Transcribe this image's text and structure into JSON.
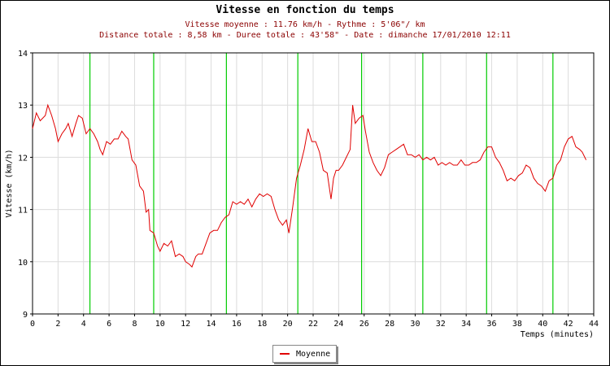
{
  "chart_data": {
    "type": "line",
    "title": "Vitesse en fonction du temps",
    "subtitle_lines": [
      "Vitesse moyenne : 11.76 km/h - Rythme : 5'06\"/ km",
      "Distance totale : 8,58 km - Duree totale : 43'58\" - Date : dimanche 17/01/2010 12:11"
    ],
    "xlabel": "Temps (minutes)",
    "ylabel": "Vitesse (km/h)",
    "xlim": [
      0,
      44
    ],
    "ylim": [
      9,
      14
    ],
    "x_ticks": [
      "0",
      "2",
      "4",
      "6",
      "8",
      "10",
      "12",
      "14",
      "16",
      "18",
      "20",
      "22",
      "24",
      "26",
      "28",
      "30",
      "32",
      "34",
      "36",
      "38",
      "40",
      "42",
      "44"
    ],
    "y_ticks": [
      "9",
      "10",
      "11",
      "12",
      "13",
      "14"
    ],
    "grid": true,
    "legend_position": "bottom-center",
    "km_markers": [
      4.5,
      9.5,
      15.2,
      20.8,
      25.8,
      30.6,
      35.6,
      40.8
    ],
    "colors": {
      "series": "#e00000",
      "markers": "#00cc00",
      "grid": "#dcdcdc"
    },
    "series": [
      {
        "name": "Moyenne",
        "points": [
          [
            0.0,
            12.55
          ],
          [
            0.3,
            12.85
          ],
          [
            0.6,
            12.7
          ],
          [
            1.0,
            12.8
          ],
          [
            1.2,
            13.0
          ],
          [
            1.5,
            12.8
          ],
          [
            1.8,
            12.55
          ],
          [
            2.0,
            12.3
          ],
          [
            2.3,
            12.45
          ],
          [
            2.6,
            12.55
          ],
          [
            2.8,
            12.65
          ],
          [
            3.1,
            12.4
          ],
          [
            3.4,
            12.65
          ],
          [
            3.6,
            12.8
          ],
          [
            3.9,
            12.75
          ],
          [
            4.2,
            12.45
          ],
          [
            4.5,
            12.55
          ],
          [
            4.8,
            12.45
          ],
          [
            5.1,
            12.3
          ],
          [
            5.3,
            12.15
          ],
          [
            5.5,
            12.05
          ],
          [
            5.8,
            12.3
          ],
          [
            6.1,
            12.25
          ],
          [
            6.4,
            12.35
          ],
          [
            6.7,
            12.35
          ],
          [
            7.0,
            12.5
          ],
          [
            7.3,
            12.4
          ],
          [
            7.5,
            12.35
          ],
          [
            7.8,
            11.95
          ],
          [
            8.1,
            11.85
          ],
          [
            8.4,
            11.45
          ],
          [
            8.7,
            11.35
          ],
          [
            8.9,
            10.95
          ],
          [
            9.1,
            11.0
          ],
          [
            9.2,
            10.6
          ],
          [
            9.5,
            10.55
          ],
          [
            9.8,
            10.3
          ],
          [
            10.0,
            10.2
          ],
          [
            10.3,
            10.35
          ],
          [
            10.6,
            10.3
          ],
          [
            10.9,
            10.4
          ],
          [
            11.2,
            10.1
          ],
          [
            11.5,
            10.15
          ],
          [
            11.8,
            10.1
          ],
          [
            12.0,
            10.0
          ],
          [
            12.3,
            9.95
          ],
          [
            12.5,
            9.9
          ],
          [
            12.8,
            10.1
          ],
          [
            13.0,
            10.15
          ],
          [
            13.3,
            10.15
          ],
          [
            13.6,
            10.35
          ],
          [
            13.9,
            10.55
          ],
          [
            14.2,
            10.6
          ],
          [
            14.5,
            10.6
          ],
          [
            14.8,
            10.75
          ],
          [
            15.1,
            10.85
          ],
          [
            15.4,
            10.9
          ],
          [
            15.7,
            11.15
          ],
          [
            16.0,
            11.1
          ],
          [
            16.3,
            11.15
          ],
          [
            16.6,
            11.1
          ],
          [
            16.9,
            11.2
          ],
          [
            17.2,
            11.05
          ],
          [
            17.5,
            11.2
          ],
          [
            17.8,
            11.3
          ],
          [
            18.1,
            11.25
          ],
          [
            18.4,
            11.3
          ],
          [
            18.7,
            11.25
          ],
          [
            19.0,
            11.0
          ],
          [
            19.3,
            10.8
          ],
          [
            19.6,
            10.7
          ],
          [
            19.9,
            10.8
          ],
          [
            20.1,
            10.55
          ],
          [
            20.4,
            11.05
          ],
          [
            20.7,
            11.6
          ],
          [
            21.0,
            11.85
          ],
          [
            21.3,
            12.15
          ],
          [
            21.6,
            12.55
          ],
          [
            21.9,
            12.3
          ],
          [
            22.2,
            12.3
          ],
          [
            22.5,
            12.1
          ],
          [
            22.8,
            11.75
          ],
          [
            23.1,
            11.7
          ],
          [
            23.4,
            11.2
          ],
          [
            23.6,
            11.6
          ],
          [
            23.8,
            11.75
          ],
          [
            24.0,
            11.75
          ],
          [
            24.3,
            11.85
          ],
          [
            24.6,
            12.0
          ],
          [
            24.9,
            12.15
          ],
          [
            25.1,
            13.0
          ],
          [
            25.3,
            12.65
          ],
          [
            25.6,
            12.75
          ],
          [
            25.9,
            12.8
          ],
          [
            26.1,
            12.5
          ],
          [
            26.4,
            12.1
          ],
          [
            26.7,
            11.9
          ],
          [
            27.0,
            11.75
          ],
          [
            27.3,
            11.65
          ],
          [
            27.6,
            11.8
          ],
          [
            27.9,
            12.05
          ],
          [
            28.2,
            12.1
          ],
          [
            28.5,
            12.15
          ],
          [
            28.8,
            12.2
          ],
          [
            29.1,
            12.25
          ],
          [
            29.4,
            12.05
          ],
          [
            29.7,
            12.05
          ],
          [
            30.0,
            12.0
          ],
          [
            30.3,
            12.05
          ],
          [
            30.6,
            11.95
          ],
          [
            30.9,
            12.0
          ],
          [
            31.2,
            11.95
          ],
          [
            31.5,
            12.0
          ],
          [
            31.8,
            11.85
          ],
          [
            32.1,
            11.9
          ],
          [
            32.4,
            11.85
          ],
          [
            32.7,
            11.9
          ],
          [
            33.0,
            11.85
          ],
          [
            33.3,
            11.85
          ],
          [
            33.6,
            11.95
          ],
          [
            33.9,
            11.85
          ],
          [
            34.2,
            11.85
          ],
          [
            34.5,
            11.9
          ],
          [
            34.8,
            11.9
          ],
          [
            35.1,
            11.95
          ],
          [
            35.4,
            12.1
          ],
          [
            35.7,
            12.2
          ],
          [
            36.0,
            12.2
          ],
          [
            36.3,
            12.0
          ],
          [
            36.6,
            11.9
          ],
          [
            36.9,
            11.75
          ],
          [
            37.2,
            11.55
          ],
          [
            37.5,
            11.6
          ],
          [
            37.8,
            11.55
          ],
          [
            38.1,
            11.65
          ],
          [
            38.4,
            11.7
          ],
          [
            38.7,
            11.85
          ],
          [
            39.0,
            11.8
          ],
          [
            39.3,
            11.6
          ],
          [
            39.6,
            11.5
          ],
          [
            39.9,
            11.45
          ],
          [
            40.2,
            11.35
          ],
          [
            40.5,
            11.55
          ],
          [
            40.8,
            11.6
          ],
          [
            41.1,
            11.85
          ],
          [
            41.4,
            11.95
          ],
          [
            41.7,
            12.2
          ],
          [
            42.0,
            12.35
          ],
          [
            42.3,
            12.4
          ],
          [
            42.6,
            12.2
          ],
          [
            42.9,
            12.15
          ],
          [
            43.1,
            12.1
          ],
          [
            43.4,
            11.95
          ]
        ]
      }
    ]
  }
}
